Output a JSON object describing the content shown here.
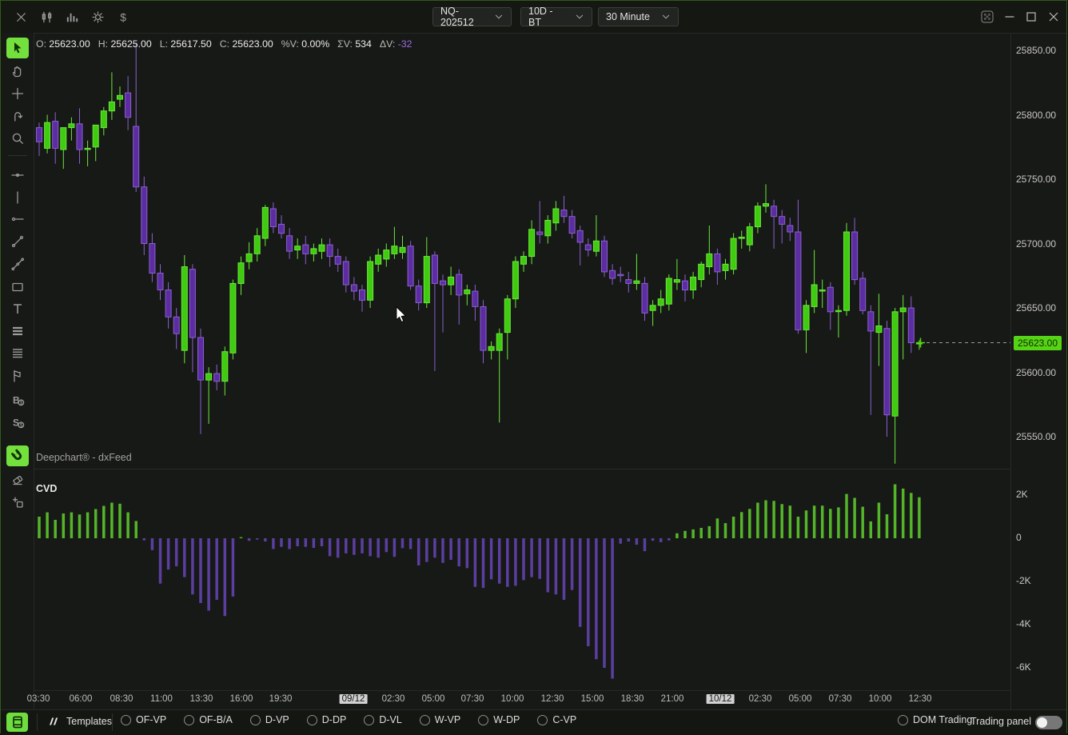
{
  "topbar": {
    "left_icons": [
      {
        "name": "close-icon"
      },
      {
        "name": "candlestick-chart-icon"
      },
      {
        "name": "volume-bars-icon"
      },
      {
        "name": "settings-gear-icon"
      },
      {
        "name": "dollar-icon"
      }
    ],
    "dropdowns": [
      {
        "name": "instrument-select",
        "label": "NQ-202512"
      },
      {
        "name": "range-select",
        "label": "10D - BT"
      },
      {
        "name": "timeframe-select",
        "label": "30 Minute"
      }
    ],
    "window_controls": [
      {
        "name": "transparency-icon"
      },
      {
        "name": "minimize-icon"
      },
      {
        "name": "maximize-icon"
      },
      {
        "name": "window-close-icon"
      }
    ]
  },
  "toolbar": {
    "items": [
      {
        "name": "pointer-tool",
        "selected": true
      },
      {
        "name": "hand-tool",
        "selected": false
      },
      {
        "name": "crosshair-tool",
        "selected": false
      },
      {
        "name": "rotate-tool",
        "selected": false
      },
      {
        "name": "zoom-tool",
        "selected": false
      },
      {
        "name": "horizontal-line-tool",
        "selected": false
      },
      {
        "name": "vertical-line-tool",
        "selected": false
      },
      {
        "name": "horizontal-ray-tool",
        "selected": false
      },
      {
        "name": "trend-line-tool",
        "selected": false
      },
      {
        "name": "angle-line-tool",
        "selected": false
      },
      {
        "name": "rectangle-tool",
        "selected": false
      },
      {
        "name": "text-tool",
        "selected": false
      },
      {
        "name": "parallel-lines-tool",
        "selected": false
      },
      {
        "name": "grid-lines-tool",
        "selected": false
      },
      {
        "name": "pennant-tool",
        "selected": false
      },
      {
        "name": "buy-order-tool",
        "selected": false
      },
      {
        "name": "sell-order-tool",
        "selected": false
      },
      {
        "name": "magnet-tool",
        "selected": true
      },
      {
        "name": "eraser-tool",
        "selected": false
      },
      {
        "name": "duplicate-tool",
        "selected": false
      }
    ]
  },
  "ohlc": {
    "items": [
      {
        "label": "O:",
        "value": "25623.00",
        "neg": false
      },
      {
        "label": "H:",
        "value": "25625.00",
        "neg": false
      },
      {
        "label": "L:",
        "value": "25617.50",
        "neg": false
      },
      {
        "label": "C:",
        "value": "25623.00",
        "neg": false
      },
      {
        "label": "%V:",
        "value": "0.00%",
        "neg": false
      },
      {
        "label": "ΣV:",
        "value": "534",
        "neg": false
      },
      {
        "label": "ΔV:",
        "value": "-32",
        "neg": true
      }
    ]
  },
  "watermark": "Deepchart® - dxFeed",
  "price_axis": {
    "ticks": [
      {
        "label": "25850.00",
        "y": 62
      },
      {
        "label": "25800.00",
        "y": 142.5
      },
      {
        "label": "25750.00",
        "y": 223
      },
      {
        "label": "25700.00",
        "y": 303.5
      },
      {
        "label": "25650.00",
        "y": 384
      },
      {
        "label": "25600.00",
        "y": 464.5
      },
      {
        "label": "25550.00",
        "y": 545
      }
    ],
    "current": {
      "label": "25623.00",
      "y": 427.5
    }
  },
  "cvd_panel": {
    "label": "CVD",
    "ticks": [
      {
        "label": "2K",
        "y": 617
      },
      {
        "label": "0",
        "y": 671
      },
      {
        "label": "-2K",
        "y": 725
      },
      {
        "label": "-4K",
        "y": 779
      },
      {
        "label": "-6K",
        "y": 833
      }
    ]
  },
  "time_axis": {
    "ticks": [
      {
        "label": "03:30",
        "x": 47,
        "highlight": false
      },
      {
        "label": "06:00",
        "x": 100,
        "highlight": false
      },
      {
        "label": "08:30",
        "x": 151,
        "highlight": false
      },
      {
        "label": "11:00",
        "x": 201,
        "highlight": false
      },
      {
        "label": "13:30",
        "x": 251,
        "highlight": false
      },
      {
        "label": "16:00",
        "x": 301,
        "highlight": false
      },
      {
        "label": "19:30",
        "x": 350,
        "highlight": false
      },
      {
        "label": "09/12",
        "x": 441,
        "highlight": true
      },
      {
        "label": "02:30",
        "x": 491,
        "highlight": false
      },
      {
        "label": "05:00",
        "x": 541,
        "highlight": false
      },
      {
        "label": "07:30",
        "x": 590,
        "highlight": false
      },
      {
        "label": "10:00",
        "x": 640,
        "highlight": false
      },
      {
        "label": "12:30",
        "x": 690,
        "highlight": false
      },
      {
        "label": "15:00",
        "x": 740,
        "highlight": false
      },
      {
        "label": "18:30",
        "x": 790,
        "highlight": false
      },
      {
        "label": "21:00",
        "x": 840,
        "highlight": false
      },
      {
        "label": "10/12",
        "x": 900,
        "highlight": true
      },
      {
        "label": "02:30",
        "x": 950,
        "highlight": false
      },
      {
        "label": "05:00",
        "x": 1000,
        "highlight": false
      },
      {
        "label": "07:30",
        "x": 1050,
        "highlight": false
      },
      {
        "label": "10:00",
        "x": 1100,
        "highlight": false
      },
      {
        "label": "12:30",
        "x": 1150,
        "highlight": false
      }
    ]
  },
  "bottombar": {
    "templates_label": "Templates",
    "radios": [
      "OF-VP",
      "OF-B/A",
      "D-VP",
      "D-DP",
      "D-VL",
      "W-VP",
      "W-DP",
      "C-VP"
    ],
    "dom_trading_label": "DOM Trading",
    "trading_panel_label": "Trading panel",
    "trading_panel_on": false
  },
  "colors": {
    "bull_fill": "#3fcb10",
    "bull_stroke": "#6ce63c",
    "bear_fill": "#5b2da0",
    "bear_stroke": "#8a5fd0",
    "cvd_pos": "#55b52a",
    "cvd_neg": "#5b3fa0",
    "current_price_bg": "#55d415",
    "selected_tool_bg": "#73e03e"
  },
  "chart_data": {
    "type": "candlestick",
    "instrument": "NQ-202512",
    "range": "10D - BT",
    "timeframe": "30 Minute",
    "price_panel": {
      "ylim": [
        25520,
        25860
      ],
      "grid": false,
      "last_price": 25623.0,
      "candles_ohlc": [
        [
          25790,
          25794,
          25768,
          25779
        ],
        [
          25774,
          25800,
          25770,
          25794
        ],
        [
          25795,
          25802,
          25762,
          25774
        ],
        [
          25773,
          25788,
          25758,
          25790
        ],
        [
          25790,
          25798,
          25780,
          25793
        ],
        [
          25793,
          25805,
          25762,
          25773
        ],
        [
          25774,
          25780,
          25760,
          25774
        ],
        [
          25775,
          25782,
          25764,
          25792
        ],
        [
          25790,
          25806,
          25784,
          25803
        ],
        [
          25803,
          25833,
          25796,
          25810
        ],
        [
          25812,
          25822,
          25806,
          25815
        ],
        [
          25817,
          25830,
          25788,
          25798
        ],
        [
          25791,
          25856,
          25740,
          25744
        ],
        [
          25744,
          25752,
          25691,
          25700
        ],
        [
          25700,
          25708,
          25670,
          25677
        ],
        [
          25677,
          25684,
          25656,
          25664
        ],
        [
          25664,
          25670,
          25634,
          25643
        ],
        [
          25643,
          25650,
          25618,
          25630
        ],
        [
          25617,
          25691,
          25607,
          25682
        ],
        [
          25680,
          25684,
          25600,
          25627
        ],
        [
          25627,
          25634,
          25552,
          25594
        ],
        [
          25594,
          25604,
          25560,
          25599
        ],
        [
          25599,
          25606,
          25586,
          25593
        ],
        [
          25593,
          25620,
          25582,
          25616
        ],
        [
          25615,
          25672,
          25610,
          25669
        ],
        [
          25669,
          25690,
          25660,
          25685
        ],
        [
          25686,
          25701,
          25680,
          25692
        ],
        [
          25692,
          25712,
          25686,
          25706
        ],
        [
          25704,
          25730,
          25698,
          25728
        ],
        [
          25727,
          25732,
          25708,
          25713
        ],
        [
          25715,
          25722,
          25704,
          25708
        ],
        [
          25706,
          25712,
          25688,
          25694
        ],
        [
          25695,
          25704,
          25688,
          25698
        ],
        [
          25699,
          25706,
          25684,
          25692
        ],
        [
          25692,
          25700,
          25686,
          25696
        ],
        [
          25694,
          25704,
          25688,
          25699
        ],
        [
          25699,
          25704,
          25682,
          25690
        ],
        [
          25690,
          25696,
          25678,
          25684
        ],
        [
          25686,
          25690,
          25662,
          25668
        ],
        [
          25668,
          25674,
          25656,
          25663
        ],
        [
          25664,
          25668,
          25647,
          25656
        ],
        [
          25656,
          25690,
          25650,
          25686
        ],
        [
          25684,
          25696,
          25678,
          25691
        ],
        [
          25688,
          25700,
          25682,
          25695
        ],
        [
          25692,
          25713,
          25688,
          25698
        ],
        [
          25693,
          25706,
          25688,
          25697
        ],
        [
          25698,
          25702,
          25664,
          25667
        ],
        [
          25667,
          25672,
          25648,
          25654
        ],
        [
          25654,
          25705,
          25650,
          25690
        ],
        [
          25691,
          25694,
          25601,
          25669
        ],
        [
          25671,
          25676,
          25631,
          25668
        ],
        [
          25668,
          25682,
          25660,
          25674
        ],
        [
          25676,
          25680,
          25637,
          25660
        ],
        [
          25661,
          25668,
          25652,
          25664
        ],
        [
          25663,
          25668,
          25640,
          25651
        ],
        [
          25651,
          25656,
          25607,
          25617
        ],
        [
          25617,
          25624,
          25610,
          25620
        ],
        [
          25617,
          25634,
          25561,
          25630
        ],
        [
          25631,
          25660,
          25610,
          25657
        ],
        [
          25657,
          25690,
          25650,
          25686
        ],
        [
          25684,
          25694,
          25678,
          25690
        ],
        [
          25690,
          25718,
          25684,
          25711
        ],
        [
          25709,
          25733,
          25700,
          25707
        ],
        [
          25706,
          25722,
          25700,
          25718
        ],
        [
          25716,
          25733,
          25710,
          25727
        ],
        [
          25726,
          25737,
          25716,
          25721
        ],
        [
          25721,
          25726,
          25704,
          25708
        ],
        [
          25710,
          25714,
          25683,
          25701
        ],
        [
          25699,
          25704,
          25690,
          25695
        ],
        [
          25694,
          25722,
          25690,
          25702
        ],
        [
          25702,
          25706,
          25674,
          25678
        ],
        [
          25679,
          25684,
          25668,
          25673
        ],
        [
          25676,
          25682,
          25670,
          25675
        ],
        [
          25672,
          25678,
          25662,
          25669
        ],
        [
          25669,
          25692,
          25664,
          25671
        ],
        [
          25669,
          25674,
          25640,
          25646
        ],
        [
          25648,
          25656,
          25636,
          25652
        ],
        [
          25652,
          25664,
          25646,
          25657
        ],
        [
          25653,
          25676,
          25648,
          25673
        ],
        [
          25670,
          25688,
          25664,
          25672
        ],
        [
          25671,
          25676,
          25655,
          25664
        ],
        [
          25664,
          25678,
          25657,
          25674
        ],
        [
          25672,
          25686,
          25666,
          25684
        ],
        [
          25682,
          25714,
          25676,
          25692
        ],
        [
          25692,
          25696,
          25668,
          25678
        ],
        [
          25679,
          25688,
          25672,
          25684
        ],
        [
          25680,
          25708,
          25676,
          25704
        ],
        [
          25704,
          25710,
          25696,
          25705
        ],
        [
          25699,
          25716,
          25694,
          25713
        ],
        [
          25713,
          25732,
          25708,
          25729
        ],
        [
          25729,
          25746,
          25724,
          25731
        ],
        [
          25729,
          25734,
          25696,
          25721
        ],
        [
          25721,
          25726,
          25700,
          25715
        ],
        [
          25714,
          25720,
          25702,
          25709
        ],
        [
          25709,
          25734,
          25630,
          25633
        ],
        [
          25633,
          25656,
          25615,
          25652
        ],
        [
          25651,
          25695,
          25646,
          25668
        ],
        [
          25664,
          25672,
          25650,
          25664
        ],
        [
          25666,
          25670,
          25633,
          25647
        ],
        [
          25648,
          25652,
          25627,
          25648
        ],
        [
          25648,
          25716,
          25644,
          25709
        ],
        [
          25709,
          25720,
          25668,
          25672
        ],
        [
          25673,
          25678,
          25645,
          25648
        ],
        [
          25647,
          25652,
          25567,
          25632
        ],
        [
          25631,
          25661,
          25605,
          25636
        ],
        [
          25634,
          25640,
          25550,
          25567
        ],
        [
          25566,
          25650,
          25529,
          25647
        ],
        [
          25647,
          25660,
          25610,
          25650
        ],
        [
          25650,
          25659,
          25615,
          25623
        ],
        [
          25623,
          25625,
          25617.5,
          25623
        ]
      ]
    },
    "indicator_panel": {
      "name": "CVD",
      "type": "bar",
      "ylim_k": [
        -7,
        2.7
      ],
      "values_k": [
        1.0,
        1.2,
        0.85,
        1.15,
        1.2,
        1.1,
        1.2,
        1.35,
        1.5,
        1.65,
        1.6,
        1.2,
        0.8,
        -0.1,
        -0.55,
        -2.1,
        -1.45,
        -1.3,
        -1.8,
        -2.6,
        -3.0,
        -3.35,
        -2.85,
        -3.6,
        -2.7,
        0.05,
        -0.12,
        -0.06,
        -0.15,
        -0.5,
        -0.4,
        -0.5,
        -0.37,
        -0.4,
        -0.45,
        -0.37,
        -0.83,
        -0.9,
        -0.7,
        -0.77,
        -0.7,
        -0.83,
        -0.9,
        -0.64,
        -0.86,
        -0.46,
        -0.5,
        -1.26,
        -1.1,
        -0.9,
        -1.14,
        -1.0,
        -1.3,
        -1.38,
        -2.25,
        -2.3,
        -1.9,
        -2.1,
        -2.25,
        -2.2,
        -1.94,
        -1.8,
        -1.88,
        -2.5,
        -2.6,
        -2.85,
        -2.4,
        -4.1,
        -5.0,
        -5.6,
        -6.0,
        -6.5,
        -0.25,
        -0.15,
        -0.3,
        -0.6,
        -0.12,
        -0.18,
        -0.1,
        0.23,
        0.34,
        0.41,
        0.48,
        0.56,
        0.92,
        0.7,
        1.0,
        1.21,
        1.36,
        1.65,
        1.76,
        1.73,
        1.58,
        1.51,
        1.0,
        1.29,
        1.51,
        1.51,
        1.36,
        1.43,
        2.05,
        1.87,
        1.46,
        0.78,
        1.65,
        1.11,
        2.5,
        2.3,
        2.1,
        1.9
      ]
    },
    "x_labels": [
      "03:30",
      "06:00",
      "08:30",
      "11:00",
      "13:30",
      "16:00",
      "19:30",
      "09/12",
      "02:30",
      "05:00",
      "07:30",
      "10:00",
      "12:30",
      "15:00",
      "18:30",
      "21:00",
      "10/12",
      "02:30",
      "05:00",
      "07:30",
      "10:00",
      "12:30"
    ]
  }
}
